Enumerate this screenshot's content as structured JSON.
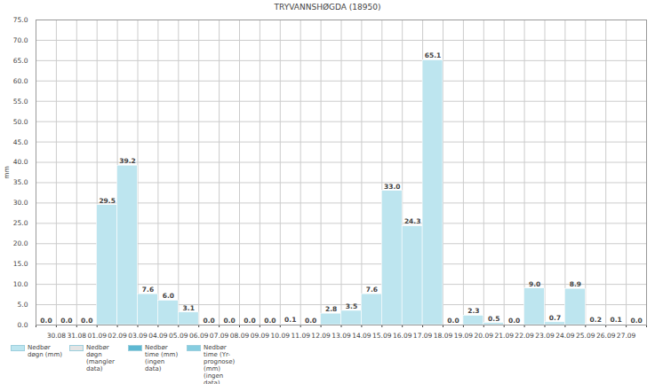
{
  "chart_data": {
    "type": "bar",
    "title": "TRYVANNSHØGDA (18950)",
    "ylabel": "mm",
    "categories": [
      null,
      "30.08",
      "31.08",
      "01.09",
      "02.09",
      "03.09",
      "04.09",
      "05.09",
      "06.09",
      "07.09",
      "08.09",
      "09.09",
      "10.09",
      "11.09",
      "12.09",
      "13.09",
      "14.09",
      "15.09",
      "16.09",
      "17.09",
      "18.09",
      "19.09",
      "20.09",
      "21.09",
      "22.09",
      "23.09",
      "24.09",
      "25.09",
      "26.09",
      "27.09"
    ],
    "series": [
      {
        "name": "Nedbør døgn (mm)",
        "color": "#bde5ef",
        "values": [
          0,
          0,
          0,
          29.5,
          39.2,
          7.6,
          6.0,
          3.1,
          0,
          0,
          0,
          0,
          0.1,
          0,
          2.8,
          3.5,
          7.6,
          33.0,
          24.3,
          65.1,
          0,
          2.3,
          0.5,
          0,
          9.0,
          0.7,
          8.9,
          0.2,
          0.1,
          0
        ],
        "value_labels": [
          "0.0",
          "0.0",
          "0.0",
          "29.5",
          "39.2",
          "7.6",
          "6.0",
          "3.1",
          "0.0",
          "0.0",
          "0.0",
          "0.0",
          "0.1",
          "0.0",
          "2.8",
          "3.5",
          "7.6",
          "33.0",
          "24.3",
          "65.1",
          "0.0",
          "2.3",
          "0.5",
          "0.0",
          "9.0",
          "0.7",
          "8.9",
          "0.2",
          "0.1",
          "0.0"
        ]
      },
      {
        "name": "Nedbør døgn (mangler data)",
        "color": "#e4e4e4",
        "values": [
          null,
          null,
          null,
          null,
          null,
          null,
          null,
          null,
          null,
          null,
          null,
          null,
          null,
          null,
          null,
          null,
          null,
          null,
          null,
          null,
          null,
          null,
          null,
          null,
          null,
          null,
          null,
          null,
          null,
          null
        ]
      },
      {
        "name": "Nedbør time (mm) (ingen data)",
        "color": "#5db8d2",
        "values": [
          null,
          null,
          null,
          null,
          null,
          null,
          null,
          null,
          null,
          null,
          null,
          null,
          null,
          null,
          null,
          null,
          null,
          null,
          null,
          null,
          null,
          null,
          null,
          null,
          null,
          null,
          null,
          null,
          null,
          null
        ]
      },
      {
        "name": "Nedbør time (Yr-prognose) (mm) (ingen data)",
        "color": "#86cde0",
        "values": [
          null,
          null,
          null,
          null,
          null,
          null,
          null,
          null,
          null,
          null,
          null,
          null,
          null,
          null,
          null,
          null,
          null,
          null,
          null,
          null,
          null,
          null,
          null,
          null,
          null,
          null,
          null,
          null,
          null,
          null
        ]
      }
    ],
    "ylim": [
      0,
      75
    ],
    "yticks": [
      {
        "value": 0,
        "label": "0.0"
      },
      {
        "value": 5,
        "label": "5.0"
      },
      {
        "value": 10,
        "label": "10.0"
      },
      {
        "value": 15,
        "label": "15.0"
      },
      {
        "value": 20,
        "label": "20.0"
      },
      {
        "value": 25,
        "label": "25.0"
      },
      {
        "value": 30,
        "label": "30.0"
      },
      {
        "value": 35,
        "label": "35.0"
      },
      {
        "value": 40,
        "label": "40.0"
      },
      {
        "value": 45,
        "label": "45.0"
      },
      {
        "value": 50,
        "label": "50.0"
      },
      {
        "value": 55,
        "label": "55.0"
      },
      {
        "value": 60,
        "label": "60.0"
      },
      {
        "value": 65,
        "label": "65.0"
      },
      {
        "value": 70,
        "label": "70.0"
      },
      {
        "value": 75,
        "label": "75.0"
      }
    ],
    "grid": true,
    "data_labels": true,
    "legend": "bottom-left"
  }
}
